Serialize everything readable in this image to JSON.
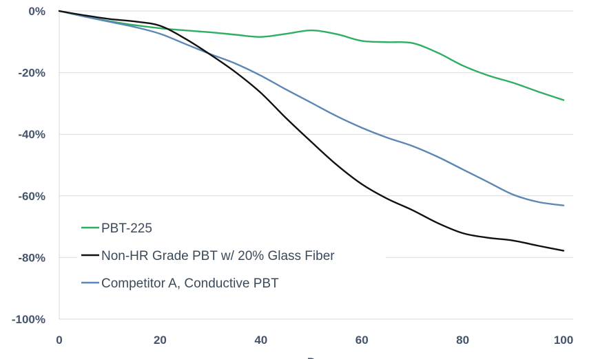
{
  "chart_data": {
    "type": "line",
    "title": "",
    "xlabel": "D",
    "ylabel": "",
    "xlim": [
      0,
      100
    ],
    "ylim": [
      -100,
      0
    ],
    "x_ticks": [
      0,
      20,
      40,
      60,
      80,
      100
    ],
    "x_tick_labels": [
      "0",
      "20",
      "40",
      "60",
      "80",
      "100"
    ],
    "y_ticks": [
      0,
      -20,
      -40,
      -60,
      -80,
      -100
    ],
    "y_tick_labels": [
      "0%",
      "-20%",
      "-40%",
      "-60%",
      "-80%",
      "-100%"
    ],
    "grid": "horizontal",
    "legend_position": "bottom-left",
    "series": [
      {
        "name": "PBT-225",
        "color": "#2EAE62",
        "x": [
          0,
          5,
          10,
          15,
          20,
          25,
          30,
          35,
          40,
          45,
          50,
          55,
          60,
          65,
          70,
          75,
          80,
          85,
          90,
          95,
          100
        ],
        "y": [
          0,
          -1.8,
          -3.3,
          -4.6,
          -5.6,
          -6.3,
          -6.9,
          -7.7,
          -8.4,
          -7.4,
          -6.3,
          -7.5,
          -9.7,
          -10.1,
          -10.4,
          -13.5,
          -17.7,
          -20.9,
          -23.3,
          -26.2,
          -28.9
        ]
      },
      {
        "name": "Non-HR Grade PBT w/ 20% Glass Fiber",
        "color": "#111111",
        "x": [
          0,
          5,
          10,
          15,
          20,
          25,
          30,
          35,
          40,
          45,
          50,
          55,
          60,
          65,
          70,
          75,
          80,
          85,
          90,
          95,
          100
        ],
        "y": [
          0,
          -1.4,
          -2.6,
          -3.4,
          -4.8,
          -9.0,
          -14.2,
          -19.9,
          -26.6,
          -34.8,
          -42.5,
          -49.9,
          -56.2,
          -60.9,
          -64.6,
          -68.8,
          -72.1,
          -73.6,
          -74.5,
          -76.2,
          -77.8
        ]
      },
      {
        "name": "Competitor A, Conductive PBT",
        "color": "#5B87B5",
        "x": [
          0,
          5,
          10,
          15,
          20,
          25,
          30,
          35,
          40,
          45,
          50,
          55,
          60,
          65,
          70,
          75,
          80,
          85,
          90,
          95,
          100
        ],
        "y": [
          0,
          -1.8,
          -3.5,
          -5.2,
          -7.4,
          -10.7,
          -14.0,
          -17.1,
          -21.0,
          -25.5,
          -29.8,
          -34.1,
          -37.9,
          -41.1,
          -43.8,
          -47.3,
          -51.4,
          -55.5,
          -59.6,
          -62.0,
          -63.1
        ]
      }
    ]
  }
}
